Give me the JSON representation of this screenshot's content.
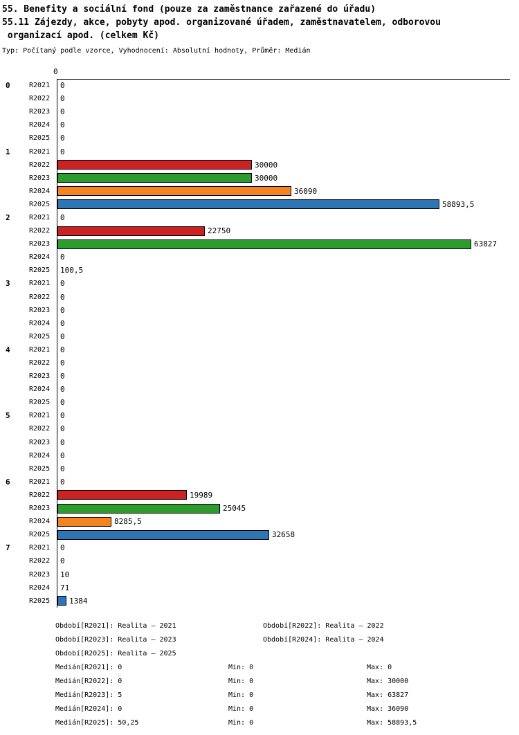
{
  "header": {
    "title_line1": "55. Benefity a sociální fond (pouze za zaměstnance zařazené do úřadu)",
    "title_line2": "55.11 Zájezdy, akce, pobyty apod. organizované úřadem, zaměstnavatelem, odborovou",
    "title_line3": " organizací apod. (celkem Kč)",
    "subtitle": "Typ: Počítaný podle vzorce, Vyhodnocení: Absolutní hodnoty, Průměr: Medián"
  },
  "chart_data": {
    "type": "bar",
    "orientation": "horizontal",
    "title": "55.11 Zájezdy, akce, pobyty apod. organizované úřadem, zaměstnavatelem, odborovou organizací apod. (celkem Kč)",
    "axis_zero_label": "0",
    "xlim": [
      0,
      63827
    ],
    "grid": false,
    "series": [
      "R2021",
      "R2022",
      "R2023",
      "R2024",
      "R2025"
    ],
    "series_colors": [
      "#888888",
      "#cc2222",
      "#2e9b2e",
      "#f5831f",
      "#2e75b5"
    ],
    "groups": [
      {
        "label": "0",
        "values": [
          0,
          0,
          0,
          0,
          0
        ],
        "display": [
          "0",
          "0",
          "0",
          "0",
          "0"
        ]
      },
      {
        "label": "1",
        "values": [
          0,
          30000,
          30000,
          36090,
          58893.5
        ],
        "display": [
          "0",
          "30000",
          "30000",
          "36090",
          "58893,5"
        ]
      },
      {
        "label": "2",
        "values": [
          0,
          22750,
          63827,
          0,
          100.5
        ],
        "display": [
          "0",
          "22750",
          "63827",
          "0",
          "100,5"
        ]
      },
      {
        "label": "3",
        "values": [
          0,
          0,
          0,
          0,
          0
        ],
        "display": [
          "0",
          "0",
          "0",
          "0",
          "0"
        ]
      },
      {
        "label": "4",
        "values": [
          0,
          0,
          0,
          0,
          0
        ],
        "display": [
          "0",
          "0",
          "0",
          "0",
          "0"
        ]
      },
      {
        "label": "5",
        "values": [
          0,
          0,
          0,
          0,
          0
        ],
        "display": [
          "0",
          "0",
          "0",
          "0",
          "0"
        ]
      },
      {
        "label": "6",
        "values": [
          0,
          19989,
          25045,
          8285.5,
          32658
        ],
        "display": [
          "0",
          "19989",
          "25045",
          "8285,5",
          "32658"
        ]
      },
      {
        "label": "7",
        "values": [
          0,
          0,
          10,
          71,
          1384
        ],
        "display": [
          "0",
          "0",
          "10",
          "71",
          "1384"
        ]
      }
    ]
  },
  "legend": {
    "rows": [
      {
        "col1": "Období[R2021]: Realita – 2021",
        "col2": "Období[R2022]: Realita – 2022"
      },
      {
        "col1": "Období[R2023]: Realita – 2023",
        "col2": "Období[R2024]: Realita – 2024"
      },
      {
        "col1": "Období[R2025]: Realita – 2025",
        "col2": ""
      }
    ]
  },
  "stats": {
    "rows": [
      {
        "median": "Medián[R2021]: 0",
        "min": "Min: 0",
        "max": "Max: 0"
      },
      {
        "median": "Medián[R2022]: 0",
        "min": "Min: 0",
        "max": "Max: 30000"
      },
      {
        "median": "Medián[R2023]: 5",
        "min": "Min: 0",
        "max": "Max: 63827"
      },
      {
        "median": "Medián[R2024]: 0",
        "min": "Min: 0",
        "max": "Max: 36090"
      },
      {
        "median": "Medián[R2025]: 50,25",
        "min": "Min: 0",
        "max": "Max: 58893,5"
      }
    ]
  }
}
